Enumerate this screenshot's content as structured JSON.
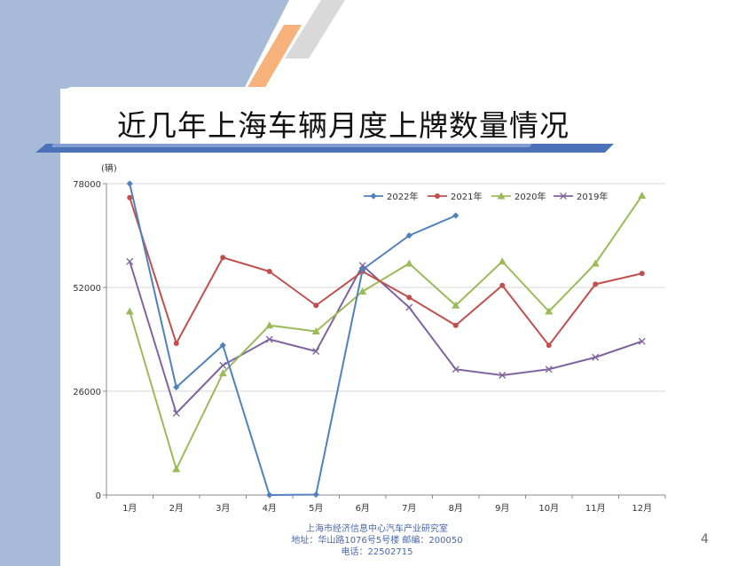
{
  "slide": {
    "title": "近几年上海车辆月度上牌数量情况",
    "footer": {
      "line1": "上海市经济信息中心汽车产业研究室",
      "line2": "地址：华山路1076号5号楼    邮编：200050",
      "line3": "电话：22502715"
    },
    "page_number": "4"
  },
  "colors": {
    "side_band": "#a7bbd9",
    "accent_orange": "#f6b27a",
    "accent_gray": "#d9d9d9",
    "title_rule": "#4a72b8"
  },
  "chart_data": {
    "type": "line",
    "title": "",
    "unit_label": "(辆)",
    "xlabel": "",
    "ylabel": "",
    "categories": [
      "1月",
      "2月",
      "3月",
      "4月",
      "5月",
      "6月",
      "7月",
      "8月",
      "9月",
      "10月",
      "11月",
      "12月"
    ],
    "ylim": [
      0,
      78000
    ],
    "yticks": [
      0,
      26000,
      52000,
      78000
    ],
    "grid": true,
    "legend_position": "top-right",
    "series": [
      {
        "name": "2022年",
        "color": "#4f81bd",
        "marker": "diamond",
        "values": [
          78000,
          27000,
          37500,
          0,
          100,
          56500,
          65000,
          70000,
          null,
          null,
          null,
          null
        ]
      },
      {
        "name": "2021年",
        "color": "#c0504d",
        "marker": "circle",
        "values": [
          74500,
          38000,
          59500,
          56000,
          47500,
          56000,
          49500,
          42500,
          52500,
          37500,
          52800,
          55500
        ]
      },
      {
        "name": "2020年",
        "color": "#9bbb59",
        "marker": "triangle",
        "values": [
          46000,
          6500,
          30500,
          42500,
          41000,
          51000,
          58000,
          47500,
          58500,
          46000,
          58000,
          75000
        ]
      },
      {
        "name": "2019年",
        "color": "#8064a2",
        "marker": "x",
        "values": [
          58500,
          20500,
          32500,
          39000,
          36000,
          57500,
          47000,
          31500,
          30000,
          31500,
          34500,
          38500
        ]
      }
    ]
  }
}
